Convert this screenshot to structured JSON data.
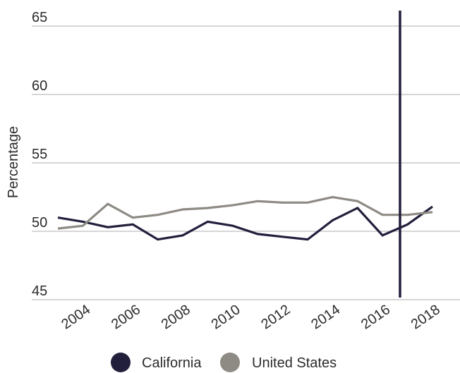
{
  "chart_data": {
    "type": "line",
    "ylabel": "Percentage",
    "x_ticks": [
      "2004",
      "2006",
      "2008",
      "2010",
      "2012",
      "2014",
      "2016",
      "2018"
    ],
    "y_ticks": [
      "65",
      "60",
      "55",
      "50",
      "45"
    ],
    "ylim": [
      44.2,
      65.8
    ],
    "xlim": [
      2002.4,
      2019.8
    ],
    "x": [
      2003,
      2004,
      2005,
      2006,
      2007,
      2008,
      2009,
      2010,
      2011,
      2012,
      2013,
      2014,
      2015,
      2016,
      2017,
      2018,
      2019
    ],
    "series": [
      {
        "name": "California",
        "color": "#221f3d",
        "values": [
          51.0,
          50.7,
          50.3,
          50.5,
          49.4,
          49.7,
          50.7,
          50.4,
          49.8,
          49.6,
          49.4,
          50.8,
          51.7,
          49.7,
          50.5,
          51.8,
          null
        ]
      },
      {
        "name": "United States",
        "color": "#8e8a84",
        "values": [
          50.2,
          50.4,
          52.0,
          51.0,
          51.2,
          51.6,
          51.7,
          51.9,
          52.2,
          52.1,
          52.1,
          52.5,
          52.2,
          51.2,
          51.2,
          51.4,
          null
        ]
      }
    ],
    "vertical_marker_x": 2016.7,
    "grid": "horizontal",
    "legend_position": "bottom"
  }
}
